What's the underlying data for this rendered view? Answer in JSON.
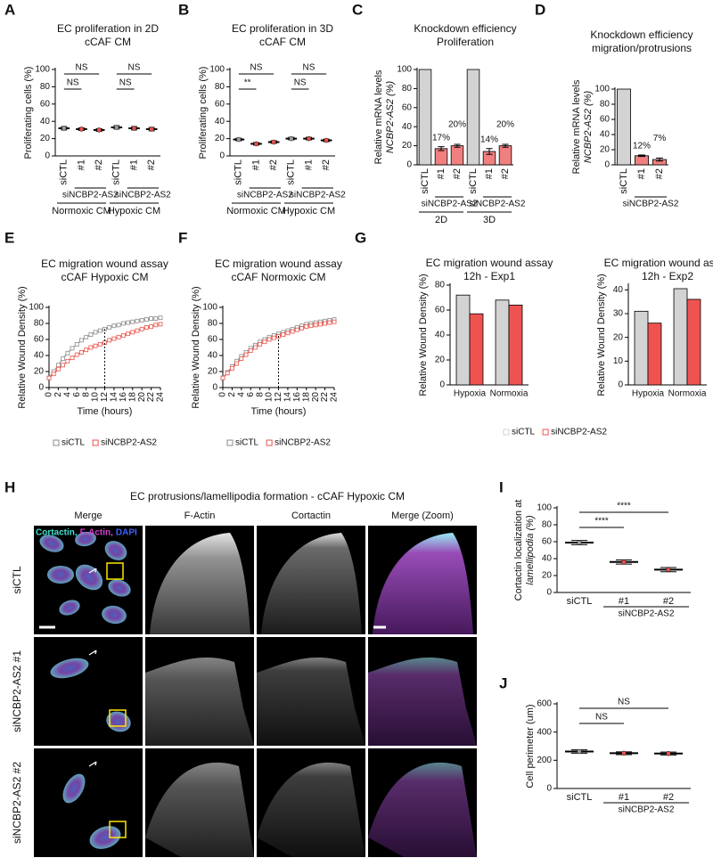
{
  "chart_data": [
    {
      "panel": "A",
      "type": "dot",
      "title": [
        "EC proliferation in 2D",
        "cCAF CM"
      ],
      "ylabel": [
        "Proliferating cells (%)"
      ],
      "categories": [
        "siCTL",
        "#1",
        "#2",
        "siCTL",
        "#1",
        "#2"
      ],
      "values": [
        32,
        31,
        30,
        33,
        32,
        31
      ],
      "errors": [
        2,
        1.5,
        1.5,
        2,
        2,
        2
      ],
      "colors": [
        "#9a9a9a",
        "#e8524a",
        "#e8524a",
        "#9a9a9a",
        "#e8524a",
        "#e8524a"
      ],
      "ylim": [
        0,
        100
      ],
      "yticks": [
        0,
        20,
        40,
        60,
        80,
        100
      ],
      "groups": [
        {
          "label": "Normoxic CM",
          "sub": "siNCBP2-AS2"
        },
        {
          "label": "Hypoxic CM",
          "sub": "siNCBP2-AS2"
        }
      ],
      "brackets": [
        {
          "from": 0,
          "to": 1,
          "label": "NS"
        },
        {
          "from": 0,
          "to": 2,
          "label": "NS"
        },
        {
          "from": 3,
          "to": 4,
          "label": "NS"
        },
        {
          "from": 3,
          "to": 5,
          "label": "NS"
        }
      ]
    },
    {
      "panel": "B",
      "type": "dot",
      "title": [
        "EC proliferation in 3D",
        "cCAF CM"
      ],
      "ylabel": [
        "Proliferating cells (%)"
      ],
      "categories": [
        "siCTL",
        "#1",
        "#2",
        "siCTL",
        "#1",
        "#2"
      ],
      "values": [
        19,
        14,
        16,
        20,
        20,
        18
      ],
      "errors": [
        1.5,
        1.5,
        1.5,
        1.5,
        1.5,
        1.5
      ],
      "colors": [
        "#9a9a9a",
        "#e8524a",
        "#e8524a",
        "#9a9a9a",
        "#e8524a",
        "#e8524a"
      ],
      "ylim": [
        0,
        100
      ],
      "yticks": [
        0,
        20,
        40,
        60,
        80,
        100
      ],
      "groups": [
        {
          "label": "Normoxic CM",
          "sub": "siNCBP2-AS2"
        },
        {
          "label": "Hypoxic CM",
          "sub": "siNCBP2-AS2"
        }
      ],
      "brackets": [
        {
          "from": 0,
          "to": 1,
          "label": "**"
        },
        {
          "from": 0,
          "to": 2,
          "label": "NS"
        },
        {
          "from": 3,
          "to": 4,
          "label": "NS"
        },
        {
          "from": 3,
          "to": 5,
          "label": "NS"
        }
      ]
    },
    {
      "panel": "C",
      "type": "bar",
      "title": [
        "Knockdown efficiency",
        "Proliferation"
      ],
      "ylabel": [
        "Relative mRNA levels",
        "NCBP2-AS2 (%)"
      ],
      "categories": [
        "siCTL",
        "#1",
        "#2",
        "siCTL",
        "#1",
        "#2"
      ],
      "values": [
        100,
        17,
        20,
        100,
        14,
        20
      ],
      "value_labels": [
        null,
        "17%",
        "20%",
        null,
        "14%",
        "20%"
      ],
      "errors": [
        0,
        2,
        1.5,
        0,
        3,
        1.5
      ],
      "colors": [
        "#d3d3d3",
        "#f08080",
        "#f08080",
        "#d3d3d3",
        "#f08080",
        "#f08080"
      ],
      "ylim": [
        0,
        100
      ],
      "yticks": [
        0,
        20,
        40,
        60,
        80,
        100
      ],
      "groups": [
        {
          "label": "2D",
          "sub": "siNCBP2-AS2"
        },
        {
          "label": "3D",
          "sub": "siNCBP2-AS2"
        }
      ]
    },
    {
      "panel": "D",
      "type": "bar",
      "title": [
        "Knockdown efficiency",
        "migration/protrusions"
      ],
      "ylabel": [
        "Relative mRNA levels",
        "NCBP2-AS2 (%)"
      ],
      "categories": [
        "siCTL",
        "#1",
        "#2"
      ],
      "values": [
        100,
        12,
        7
      ],
      "value_labels": [
        null,
        "12%",
        "7%"
      ],
      "errors": [
        0,
        1,
        2
      ],
      "colors": [
        "#d3d3d3",
        "#f08080",
        "#f08080"
      ],
      "ylim": [
        0,
        100
      ],
      "yticks": [
        0,
        20,
        40,
        60,
        80,
        100
      ],
      "groups": [
        {
          "sub": "siNCBP2-AS2"
        }
      ]
    },
    {
      "panel": "E",
      "type": "line",
      "title": [
        "EC migration wound assay",
        "cCAF Hypoxic CM"
      ],
      "ylabel": [
        "Relative Wound Density (%)"
      ],
      "xlabel": "Time (hours)",
      "x": [
        0,
        1,
        2,
        3,
        4,
        5,
        6,
        7,
        8,
        9,
        10,
        11,
        12,
        13,
        14,
        15,
        16,
        17,
        18,
        19,
        20,
        21,
        22,
        23,
        24
      ],
      "xlim": [
        0,
        24
      ],
      "xticks": [
        0,
        2,
        4,
        6,
        8,
        10,
        12,
        14,
        16,
        18,
        20,
        22,
        24
      ],
      "ylim": [
        0,
        100
      ],
      "yticks": [
        0,
        20,
        40,
        60,
        80,
        100
      ],
      "vline": 12,
      "legend": "bottom",
      "series": [
        {
          "name": "siCTL",
          "color": "#8c8c8c",
          "values": [
            12,
            20,
            28,
            36,
            43,
            49,
            54,
            59,
            63,
            66,
            69,
            71,
            73,
            75,
            77,
            78,
            80,
            81,
            82,
            83,
            84,
            85,
            86,
            86,
            87
          ]
        },
        {
          "name": "siNCBP2-AS2",
          "color": "#e8524a",
          "values": [
            12,
            17,
            23,
            28,
            33,
            37,
            41,
            44,
            47,
            50,
            52,
            54,
            56,
            59,
            61,
            63,
            65,
            67,
            69,
            71,
            73,
            75,
            76,
            78,
            79
          ]
        }
      ]
    },
    {
      "panel": "F",
      "type": "line",
      "title": [
        "EC migration wound assay",
        "cCAF Normoxic CM"
      ],
      "ylabel": [
        "Relative Wound Density (%)"
      ],
      "xlabel": "Time (hours)",
      "x": [
        0,
        1,
        2,
        3,
        4,
        5,
        6,
        7,
        8,
        9,
        10,
        11,
        12,
        13,
        14,
        15,
        16,
        17,
        18,
        19,
        20,
        21,
        22,
        23,
        24
      ],
      "xlim": [
        0,
        24
      ],
      "xticks": [
        0,
        2,
        4,
        6,
        8,
        10,
        12,
        14,
        16,
        18,
        20,
        22,
        24
      ],
      "ylim": [
        0,
        100
      ],
      "yticks": [
        0,
        20,
        40,
        60,
        80,
        100
      ],
      "vline": 12,
      "legend": "bottom",
      "series": [
        {
          "name": "siCTL",
          "color": "#8c8c8c",
          "values": [
            12,
            19,
            26,
            33,
            39,
            44,
            49,
            53,
            57,
            60,
            63,
            65,
            67,
            69,
            71,
            73,
            75,
            77,
            79,
            80,
            81,
            82,
            83,
            84,
            85
          ]
        },
        {
          "name": "siNCBP2-AS2",
          "color": "#e8524a",
          "values": [
            12,
            18,
            24,
            30,
            36,
            41,
            46,
            50,
            54,
            57,
            60,
            62,
            64,
            66,
            68,
            70,
            72,
            74,
            76,
            77,
            78,
            79,
            80,
            81,
            82
          ]
        }
      ]
    },
    {
      "panel": "G",
      "type": "grouped_bar",
      "title": [
        "EC migration wound assay",
        "12h - Exp1"
      ],
      "ylabel": [
        "Relative Wound Density (%)"
      ],
      "categories": [
        "Hypoxia",
        "Normoxia"
      ],
      "ylim": [
        0,
        80
      ],
      "yticks": [
        0,
        20,
        40,
        60,
        80
      ],
      "legend": "bottom",
      "series": [
        {
          "name": "siCTL",
          "color": "#d3d3d3",
          "values": [
            72,
            68
          ]
        },
        {
          "name": "siNCBP2-AS2",
          "color": "#ef5350",
          "values": [
            57,
            64
          ]
        }
      ]
    },
    {
      "type": "grouped_bar",
      "title": [
        "EC migration wound assay",
        "12h - Exp2"
      ],
      "ylabel": [
        "Relative Wound Density (%)"
      ],
      "categories": [
        "Hypoxia",
        "Normoxia"
      ],
      "ylim": [
        0,
        42
      ],
      "yticks": [
        0,
        10,
        20,
        30,
        40
      ],
      "series": [
        {
          "name": "siCTL",
          "color": "#d3d3d3",
          "values": [
            31,
            40.5
          ]
        },
        {
          "name": "siNCBP2-AS2",
          "color": "#ef5350",
          "values": [
            26,
            36
          ]
        }
      ]
    },
    {
      "panel": "I",
      "type": "dot",
      "ylabel": [
        "Cortactin localization at",
        "lamellipodia (%)"
      ],
      "categories": [
        "siCTL",
        "#1",
        "#2"
      ],
      "values": [
        59,
        36,
        27
      ],
      "errors": [
        2.5,
        2.5,
        2.5
      ],
      "colors": [
        "#9a9a9a",
        "#e8524a",
        "#e8524a"
      ],
      "ylim": [
        0,
        100
      ],
      "yticks": [
        0,
        20,
        40,
        60,
        80,
        100
      ],
      "groups": [
        {
          "sub": "siNCBP2-AS2"
        }
      ],
      "brackets": [
        {
          "from": 0,
          "to": 1,
          "label": "****"
        },
        {
          "from": 0,
          "to": 2,
          "label": "****"
        }
      ]
    },
    {
      "panel": "J",
      "type": "dot",
      "ylabel": [
        "Cell perimeter (um)"
      ],
      "categories": [
        "siCTL",
        "#1",
        "#2"
      ],
      "values": [
        262,
        250,
        248
      ],
      "errors": [
        12,
        10,
        10
      ],
      "colors": [
        "#9a9a9a",
        "#e8524a",
        "#e8524a"
      ],
      "ylim": [
        0,
        600
      ],
      "yticks": [
        0,
        200,
        400,
        600
      ],
      "groups": [
        {
          "sub": "siNCBP2-AS2"
        }
      ],
      "brackets": [
        {
          "from": 0,
          "to": 1,
          "label": "NS"
        },
        {
          "from": 0,
          "to": 2,
          "label": "NS"
        }
      ]
    }
  ],
  "image_panel": {
    "panel": "H",
    "title": "EC protrusions/lamellipodia formation -  cCAF Hypoxic CM",
    "columns": [
      "Merge",
      "F-Actin",
      "Cortactin",
      "Merge (Zoom)"
    ],
    "rows": [
      "siCTL",
      "siNCBP2-AS2 #1",
      "siNCBP2-AS2 #2"
    ],
    "channels": [
      {
        "name": "Cortactin,",
        "color": "#40e0d0"
      },
      {
        "name": "F-Actin,",
        "color": "#d040d0"
      },
      {
        "name": "DAPI",
        "color": "#4060ff"
      }
    ]
  }
}
